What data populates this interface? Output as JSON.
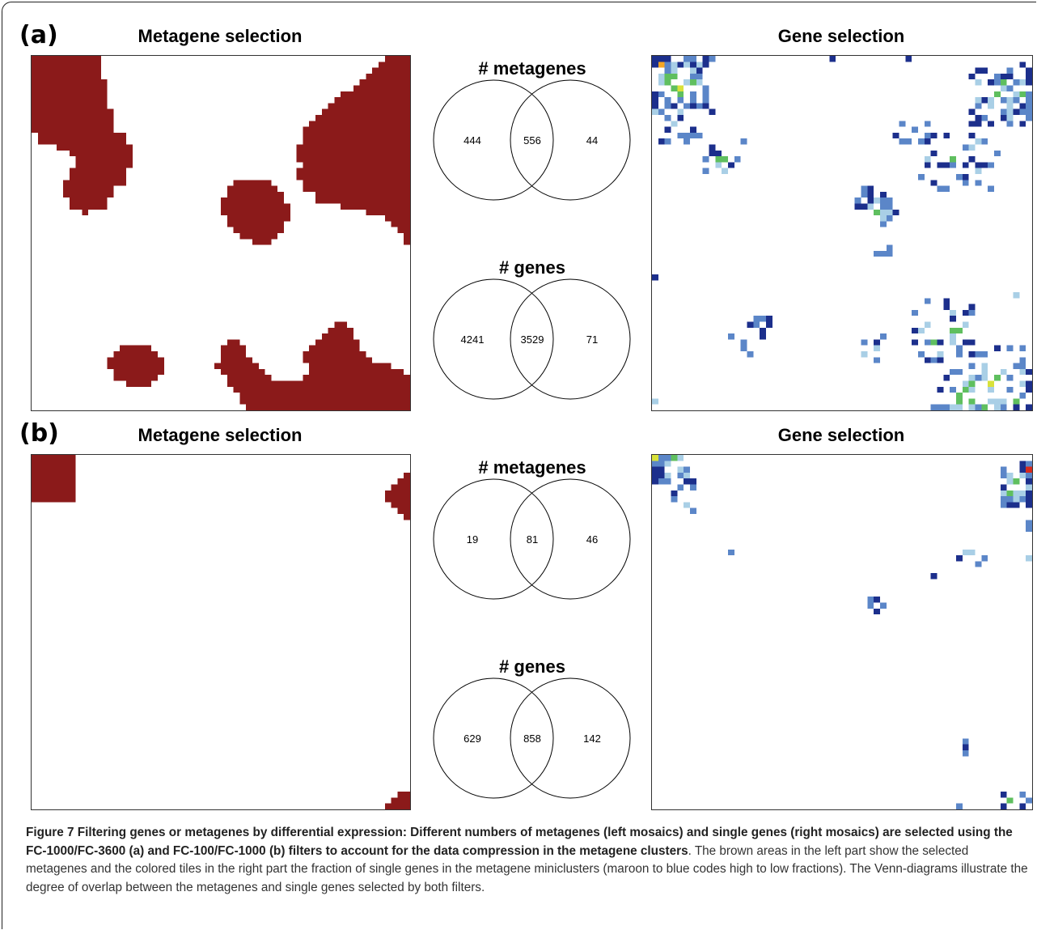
{
  "panels": [
    {
      "label": "(a)",
      "metagene_title": "Metagene selection",
      "gene_title": "Gene selection",
      "venn_metagenes": {
        "title": "# metagenes",
        "left": "444",
        "overlap": "556",
        "right": "44"
      },
      "venn_genes": {
        "title": "# genes",
        "left": "4241",
        "overlap": "3529",
        "right": "71"
      }
    },
    {
      "label": "(b)",
      "metagene_title": "Metagene selection",
      "gene_title": "Gene selection",
      "venn_metagenes": {
        "title": "# metagenes",
        "left": "19",
        "overlap": "81",
        "right": "46"
      },
      "venn_genes": {
        "title": "# genes",
        "left": "629",
        "overlap": "858",
        "right": "142"
      }
    }
  ],
  "caption": {
    "bold": "Figure 7 Filtering genes or metagenes by differential expression: Different numbers of metagenes (left mosaics) and single genes (right mosaics) are selected using the FC-1000/FC-3600 (a) and FC-100/FC-1000 (b) filters to account for the data compression in the metagene clusters",
    "text": ". The brown areas in the left part show the selected metagenes and the colored tiles in the right part the fraction of single genes in the metagene miniclusters (maroon to blue codes high to low fractions). The Venn-diagrams illustrate the degree of overlap between the metagenes and single genes selected by both filters."
  },
  "colors": {
    "selected_metagene": "#8b1a1a",
    "gene_fraction_scale": [
      "#1c2f8c",
      "#5b86c8",
      "#a9cfe6",
      "#5fbf5f",
      "#d8e23a",
      "#f5a623",
      "#d62a1e",
      "#8b1a1a"
    ]
  }
}
